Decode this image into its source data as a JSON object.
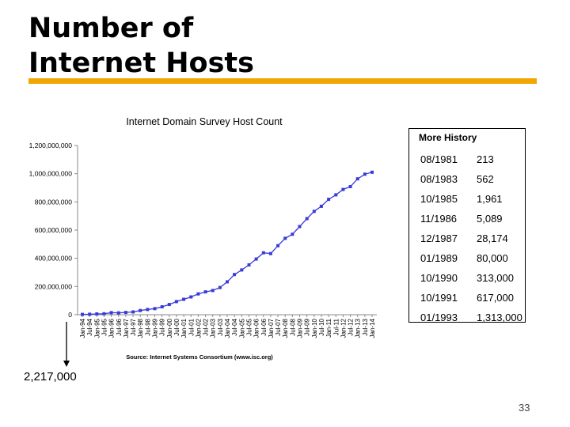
{
  "slide": {
    "title_line1": "Number of",
    "title_line2": "Internet Hosts",
    "page_number": "33",
    "callout_value": "2,217,000",
    "accent_color": "#f0a800"
  },
  "chart_data": {
    "type": "line",
    "title": "Internet Domain Survey Host Count",
    "source_note": "Source: Internet Systems Consortium (www.isc.org)",
    "xlabel": "",
    "ylabel": "",
    "ylim": [
      0,
      1200000000
    ],
    "yticks": [
      0,
      200000000,
      400000000,
      600000000,
      800000000,
      1000000000,
      1200000000
    ],
    "ytick_labels": [
      "0",
      "200,000,000",
      "400,000,000",
      "600,000,000",
      "800,000,000",
      "1,000,000,000",
      "1,200,000,000"
    ],
    "grid": false,
    "series_color": "#3a3ad8",
    "categories": [
      "Jan-94",
      "Jul-94",
      "Jan-95",
      "Jul-95",
      "Jan-96",
      "Jul-96",
      "Jan-97",
      "Jul-97",
      "Jan-98",
      "Jul-98",
      "Jan-99",
      "Jul-99",
      "Jan-00",
      "Jul-00",
      "Jan-01",
      "Jul-01",
      "Jan-02",
      "Jul-02",
      "Jan-03",
      "Jul-03",
      "Jan-04",
      "Jul-04",
      "Jan-05",
      "Jul-05",
      "Jan-06",
      "Jul-06",
      "Jan-07",
      "Jul-07",
      "Jan-08",
      "Jul-08",
      "Jan-09",
      "Jul-09",
      "Jan-10",
      "Jul-10",
      "Jan-11",
      "Jul-11",
      "Jan-12",
      "Jul-12",
      "Jan-13",
      "Jul-13",
      "Jan-14"
    ],
    "values": [
      2217000,
      3212000,
      5846000,
      6642000,
      14352000,
      12881000,
      16146000,
      19540000,
      29670000,
      36739000,
      43230000,
      56218000,
      72398000,
      93047000,
      109574000,
      125888000,
      147345000,
      162128000,
      171638000,
      192663000,
      233101000,
      285139000,
      317646000,
      353284000,
      394991000,
      439286000,
      433193000,
      489774000,
      541677000,
      570937000,
      625226000,
      681064000,
      732740000,
      768913000,
      818374000,
      849869000,
      888239000,
      908585000,
      963518000,
      996230000,
      1010251000
    ]
  },
  "history": {
    "heading": "More History",
    "rows": [
      {
        "date": "08/1981",
        "count": "213"
      },
      {
        "date": "08/1983",
        "count": "562"
      },
      {
        "date": "10/1985",
        "count": "1,961"
      },
      {
        "date": "11/1986",
        "count": "5,089"
      },
      {
        "date": "12/1987",
        "count": "28,174"
      },
      {
        "date": "01/1989",
        "count": "80,000"
      },
      {
        "date": "10/1990",
        "count": "313,000"
      },
      {
        "date": "10/1991",
        "count": "617,000"
      },
      {
        "date": "01/1993",
        "count": "1,313,000"
      }
    ]
  }
}
